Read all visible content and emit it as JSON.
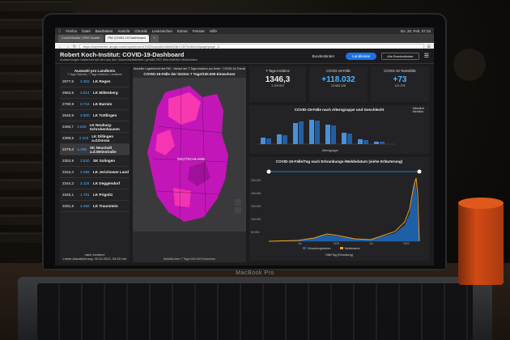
{
  "browser": {
    "menu": [
      "Firefox",
      "Datei",
      "Bearbeiten",
      "Ansicht",
      "Chronik",
      "Lesezeichen",
      "Extras",
      "Fenster",
      "Hilfe"
    ],
    "clock": "Do. 20. Feb.  07:10",
    "tabs": [
      "CovidSituatie | IRIS Kaarte",
      "PM COVID-19 Dashboard",
      ""
    ],
    "active_tab": 1,
    "url": "https://experience.arcgis.com/experience/478220a4c454480e823b17327b2bf1d4/page/page_1/"
  },
  "dashboard": {
    "title": "Robert Koch-Institut: COVID-19-Dashboard",
    "subtitle": "Auswertungen basierend auf den aus den Gesundheitsämtern gemäß IfSG übermittelten Meldedaten",
    "nav": [
      "Bundesländer",
      "Landkreise"
    ],
    "nav_active": 1,
    "select": "Alle Bundesländer",
    "left": {
      "heading": "Auswahl pro Landkreis",
      "legend": "7-Tage-Fallzahl | 7-Tage-Inzidenz | Landkreis",
      "rows": [
        {
          "cases": "2977,5",
          "inc": "2.302",
          "name": "LK Regen"
        },
        {
          "cases": "2962,5",
          "inc": "3.814",
          "name": "LK Miltenberg"
        },
        {
          "cases": "2780,9",
          "inc": "3.716",
          "name": "LK Barnim"
        },
        {
          "cases": "2540,9",
          "inc": "3.600",
          "name": "LK Tuttlingen"
        },
        {
          "cases": "2460,7",
          "inc": "3.625",
          "name": "LK Neuburg-Schrobenhausen"
        },
        {
          "cases": "2389,6",
          "inc": "2.223",
          "name": "LK Dillingen a.d.Donau"
        },
        {
          "cases": "2375,0",
          "inc": "1.266",
          "name": "SK Neustadt a.d.Weinstraße"
        },
        {
          "cases": "2352,9",
          "inc": "3.630",
          "name": "SK Solingen"
        },
        {
          "cases": "2344,4",
          "inc": "2.096",
          "name": "LK Jerichower Land"
        },
        {
          "cases": "2344,2",
          "inc": "3.118",
          "name": "LK Deggendorf"
        },
        {
          "cases": "2340,1",
          "inc": "1.791",
          "name": "LK Prignitz"
        },
        {
          "cases": "2281,9",
          "inc": "4.050",
          "name": "LK Traunstein"
        }
      ],
      "footer_a": "nach Inzidenz",
      "footer_b": "Letzte Aktualisierung: 20.02.2022, 03:20 Uhr"
    },
    "map": {
      "note": "Aktueller Lagebericht des RKI · Verlauf der 7-Tage-Inzidenz pro Kreis · COVID-19-Trends",
      "title": "COVID-19-Fälle der letzten 7 Tage/100.000 Einwohner",
      "country_label": "DEUTSCHLAND",
      "footer": "Aktivität über 7 Tage/100.000 Einwohner"
    },
    "kpis": [
      {
        "label": "7-Tage-Inzidenz",
        "value": "1346,3",
        "sub": "1.119.912"
      },
      {
        "label": "COVID-19-Fälle",
        "value": "+118.032",
        "sub": "13.563.126"
      },
      {
        "label": "COVID-19-Todesfälle",
        "value": "+73",
        "sub": "121.275"
      }
    ],
    "age_chart": {
      "title": "COVID-19-Fälle nach Altersgruppe und Geschlecht",
      "legend": [
        "Männlich",
        "Weiblich"
      ],
      "x_label": "Altersgruppe"
    },
    "epi_chart": {
      "title": "COVID-19-Fälle/Tag nach Erkrankungs-/Meldedatum (siehe Erläuterung)",
      "yticks": [
        "250.000",
        "200.000",
        "150.000",
        "100.000",
        "50.000"
      ],
      "xticks": [
        "Jul",
        "2021",
        "Jul",
        "2022"
      ],
      "legend": [
        "Erkrankungsdatum",
        "Meldedatum"
      ],
      "x_label": "Fälle/Tag (Erkrankung)"
    }
  },
  "laptop": {
    "brand": "MacBook Pro"
  },
  "colors": {
    "accent": "#1a73e8",
    "map_magenta": "#c316b8",
    "map_pink": "#ff3bb0",
    "bar_blue": "#4a90d9",
    "epi_orange": "#f0a020"
  }
}
